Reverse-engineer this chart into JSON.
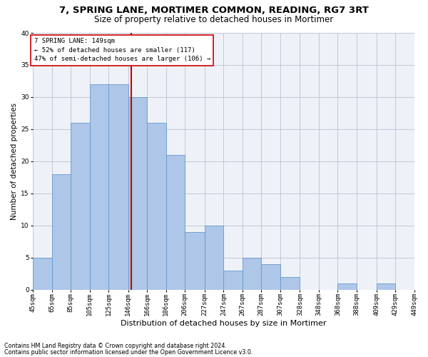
{
  "title1": "7, SPRING LANE, MORTIMER COMMON, READING, RG7 3RT",
  "title2": "Size of property relative to detached houses in Mortimer",
  "xlabel": "Distribution of detached houses by size in Mortimer",
  "ylabel": "Number of detached properties",
  "footnote1": "Contains HM Land Registry data © Crown copyright and database right 2024.",
  "footnote2": "Contains public sector information licensed under the Open Government Licence v3.0.",
  "annotation_line1": "7 SPRING LANE: 149sqm",
  "annotation_line2": "← 52% of detached houses are smaller (117)",
  "annotation_line3": "47% of semi-detached houses are larger (106) →",
  "property_size": 149,
  "bar_edges": [
    45,
    65,
    85,
    105,
    125,
    146,
    166,
    186,
    206,
    227,
    247,
    267,
    287,
    307,
    328,
    348,
    368,
    388,
    409,
    429,
    449
  ],
  "bar_heights": [
    5,
    18,
    26,
    32,
    32,
    30,
    26,
    21,
    9,
    10,
    3,
    5,
    4,
    2,
    0,
    0,
    1,
    0,
    1,
    0
  ],
  "bar_color": "#aec6e8",
  "bar_edge_color": "#6699cc",
  "vline_x": 149,
  "vline_color": "#cc0000",
  "grid_color": "#c0c8d8",
  "bg_color": "#eef2f8",
  "ylim": [
    0,
    40
  ],
  "yticks": [
    0,
    5,
    10,
    15,
    20,
    25,
    30,
    35,
    40
  ],
  "title1_fontsize": 9.5,
  "title2_fontsize": 8.5,
  "xlabel_fontsize": 8,
  "ylabel_fontsize": 7.5,
  "ann_fontsize": 6.5,
  "footnote_fontsize": 5.8,
  "tick_fontsize": 6.5
}
